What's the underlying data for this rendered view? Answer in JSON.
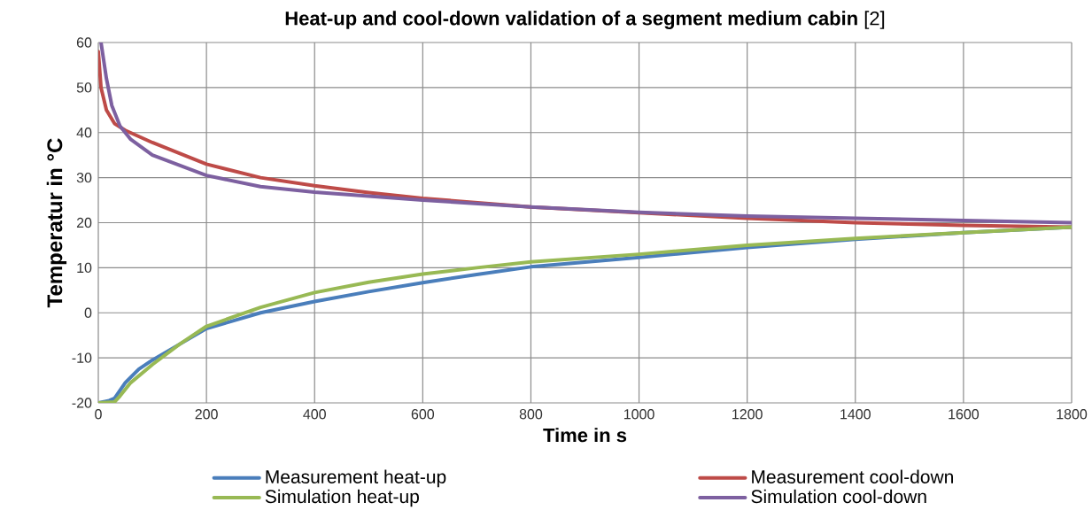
{
  "chart_data": {
    "type": "line",
    "title": "**Heat-up and cool-down validation of a segment medium cabin** [2]",
    "xlabel": "Time in s",
    "ylabel": "Temperatur in °C",
    "xlim": [
      0,
      1800
    ],
    "xticks": [
      0,
      200,
      400,
      600,
      800,
      1000,
      1200,
      1400,
      1600,
      1800
    ],
    "ylim": [
      -20,
      60
    ],
    "yticks": [
      -20,
      -10,
      0,
      10,
      20,
      30,
      40,
      50,
      60
    ],
    "grid": true,
    "legend": "bottom",
    "marker": "none",
    "line_style": "solid",
    "series": [
      {
        "name": "Measurement heat-up",
        "color": "#4a7ebb",
        "x": [
          0,
          20,
          30,
          50,
          75,
          100,
          150,
          200,
          300,
          400,
          500,
          600,
          700,
          800,
          1000,
          1200,
          1400,
          1600,
          1800
        ],
        "values": [
          -20,
          -19.5,
          -19,
          -15.5,
          -12.5,
          -10.5,
          -7,
          -3.5,
          0,
          2.5,
          4.7,
          6.7,
          8.5,
          10.2,
          12.3,
          14.5,
          16.3,
          17.8,
          19
        ]
      },
      {
        "name": "Measurement cool-down",
        "color": "#be4b48",
        "x": [
          0,
          5,
          15,
          30,
          50,
          100,
          200,
          300,
          400,
          500,
          600,
          800,
          1000,
          1200,
          1400,
          1600,
          1800
        ],
        "values": [
          58,
          50,
          45,
          42,
          40.5,
          37.8,
          33,
          30,
          28.2,
          26.7,
          25.4,
          23.5,
          22.2,
          21,
          20,
          19.4,
          19
        ]
      },
      {
        "name": "Simulation heat-up",
        "color": "#98b954",
        "x": [
          0,
          30,
          40,
          60,
          100,
          150,
          200,
          300,
          400,
          500,
          600,
          700,
          800,
          1000,
          1200,
          1400,
          1600,
          1800
        ],
        "values": [
          -20,
          -19.8,
          -18.5,
          -15.5,
          -11.5,
          -7,
          -3,
          1.2,
          4.5,
          6.8,
          8.6,
          10,
          11.3,
          13,
          15,
          16.5,
          17.8,
          19
        ]
      },
      {
        "name": "Simulation cool-down",
        "color": "#7d60a0",
        "x": [
          5,
          15,
          25,
          40,
          60,
          100,
          200,
          300,
          400,
          600,
          800,
          1000,
          1200,
          1400,
          1600,
          1800
        ],
        "values": [
          60,
          52,
          46,
          41.5,
          38.5,
          35,
          30.5,
          28,
          26.8,
          25,
          23.5,
          22.3,
          21.5,
          21,
          20.5,
          20
        ]
      }
    ]
  }
}
